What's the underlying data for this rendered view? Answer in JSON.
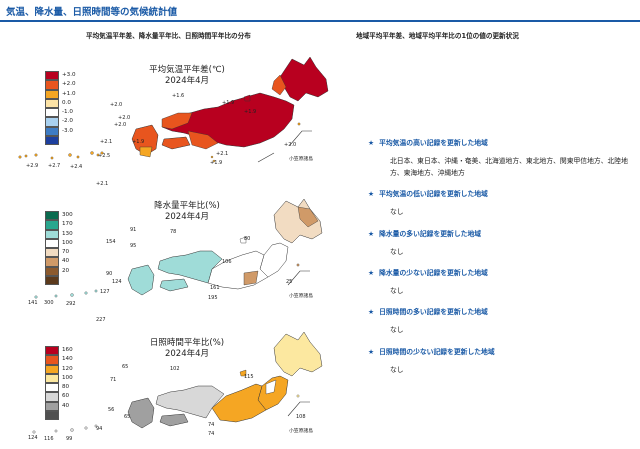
{
  "header": {
    "title": "気温、降水量、日照時間等の気候統計値"
  },
  "left_title": "平均気温平年差、降水量平年比、日照時間平年比の分布",
  "right_title": "地域平均平年差、地域平均平年比の1位の値の更新状況",
  "maps": [
    {
      "title_line1": "平均気温平年差(℃)",
      "title_line2": "2024年4月",
      "legend": [
        {
          "label": "+3.0",
          "color": "#b8001f"
        },
        {
          "label": "+2.0",
          "color": "#e8551e"
        },
        {
          "label": "+1.0",
          "color": "#f5a623"
        },
        {
          "label": "0.0",
          "color": "#fce3a6"
        },
        {
          "label": "-1.0",
          "color": "#ffffff"
        },
        {
          "label": "-2.0",
          "color": "#a9d1f0"
        },
        {
          "label": "-3.0",
          "color": "#3e7cc4"
        },
        {
          "label": "",
          "color": "#1d3f9e"
        }
      ],
      "labels": [
        "+2.0",
        "+1.6",
        "+1.9",
        "+2.0",
        "+2.1",
        "+1.9",
        "+1.9",
        "+2.1",
        "+2.0",
        "+2.5",
        "+2.9",
        "+2.7",
        "+2.4",
        "+2.1",
        "+2.0",
        "+1.9"
      ],
      "ogasawara": "小笠原諸島"
    },
    {
      "title_line1": "降水量平年比(%)",
      "title_line2": "2024年4月",
      "legend": [
        {
          "label": "300",
          "color": "#0b6b4f"
        },
        {
          "label": "170",
          "color": "#2aa68e"
        },
        {
          "label": "130",
          "color": "#9fdcd8"
        },
        {
          "label": "100",
          "color": "#ffffff"
        },
        {
          "label": "70",
          "color": "#f2dcc2"
        },
        {
          "label": "40",
          "color": "#d09a68"
        },
        {
          "label": "20",
          "color": "#8c5a2e"
        },
        {
          "label": "",
          "color": "#5c3a1c"
        }
      ],
      "labels": [
        "91",
        "78",
        "154",
        "80",
        "95",
        "106",
        "90",
        "124",
        "161",
        "195",
        "141",
        "300",
        "292",
        "127",
        "227",
        "25"
      ],
      "ogasawara": "小笠原諸島"
    },
    {
      "title_line1": "日照時間平年比(%)",
      "title_line2": "2024年4月",
      "legend": [
        {
          "label": "160",
          "color": "#b8001f"
        },
        {
          "label": "140",
          "color": "#e8551e"
        },
        {
          "label": "120",
          "color": "#f5a623"
        },
        {
          "label": "100",
          "color": "#fce8a0"
        },
        {
          "label": "80",
          "color": "#ffffff"
        },
        {
          "label": "60",
          "color": "#d8d8d8"
        },
        {
          "label": "40",
          "color": "#a0a0a0"
        },
        {
          "label": "",
          "color": "#505050"
        }
      ],
      "labels": [
        "65",
        "102",
        "115",
        "71",
        "56",
        "65",
        "74",
        "74",
        "124",
        "116",
        "99",
        "94",
        "108"
      ],
      "ogasawara": "小笠原諸島"
    }
  ],
  "records": [
    {
      "heading": "平均気温の高い記録を更新した地域",
      "body": "北日本、東日本、沖縄・奄美、北海道地方、東北地方、関東甲信地方、北陸地方、東海地方、沖縄地方"
    },
    {
      "heading": "平均気温の低い記録を更新した地域",
      "body": "なし"
    },
    {
      "heading": "降水量の多い記録を更新した地域",
      "body": "なし"
    },
    {
      "heading": "降水量の少ない記録を更新した地域",
      "body": "なし"
    },
    {
      "heading": "日照時間の多い記録を更新した地域",
      "body": "なし"
    },
    {
      "heading": "日照時間の少ない記録を更新した地域",
      "body": "なし"
    }
  ],
  "icons": {
    "star": "★"
  }
}
